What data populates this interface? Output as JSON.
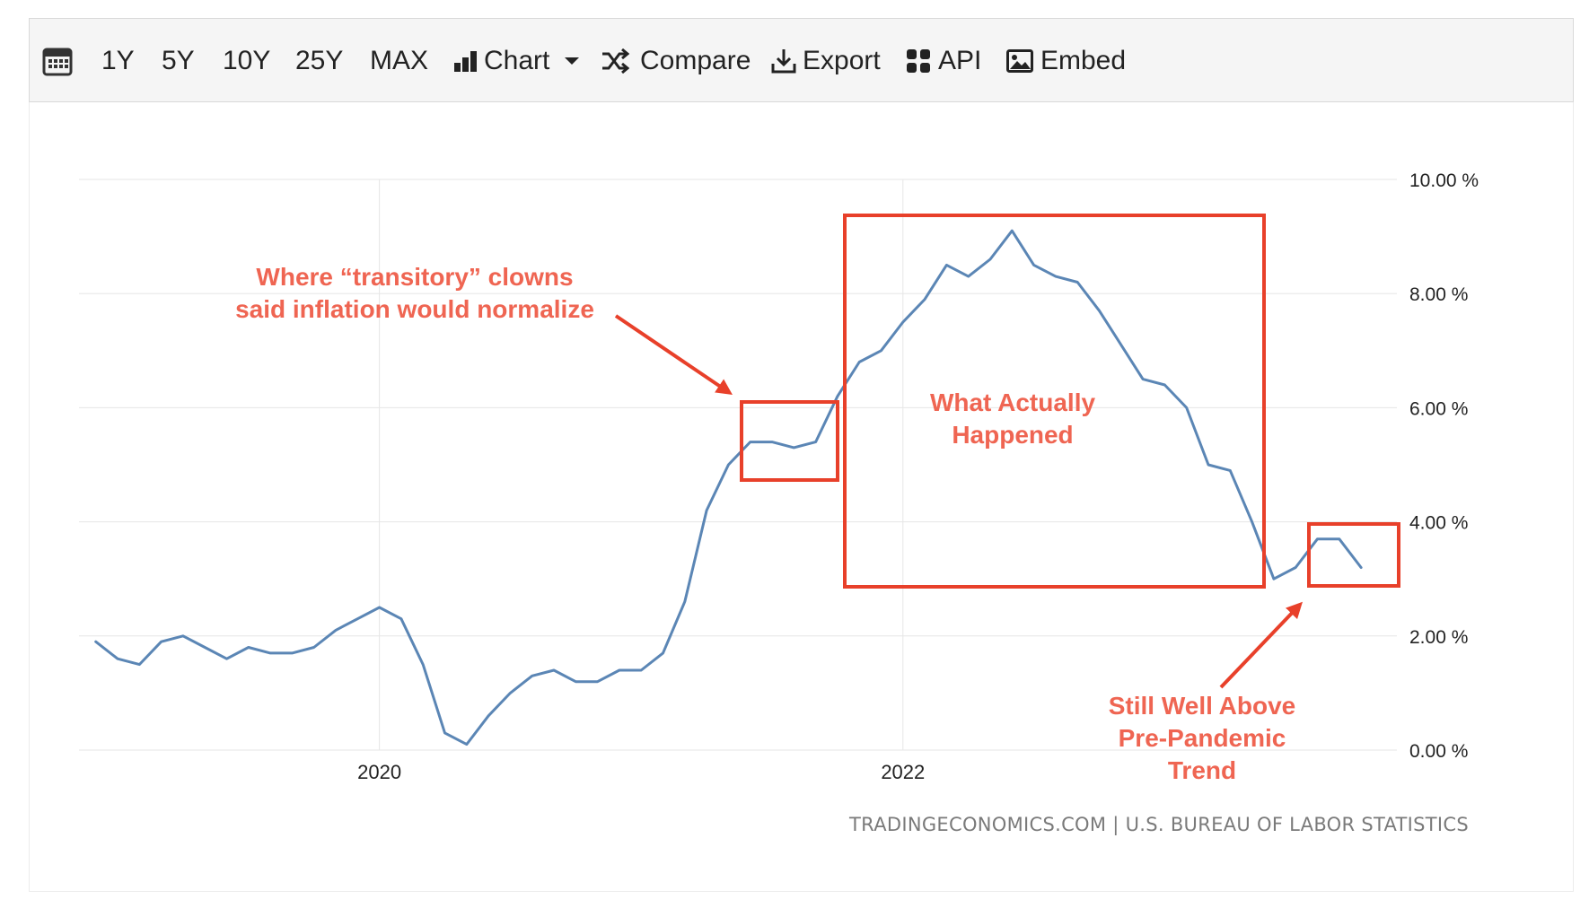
{
  "toolbar": {
    "items": [
      {
        "label": "",
        "icon": "calendar-icon"
      },
      {
        "label": "1Y"
      },
      {
        "label": "5Y"
      },
      {
        "label": "10Y"
      },
      {
        "label": "25Y"
      },
      {
        "label": "MAX"
      },
      {
        "label": "Chart",
        "icon": "bar-chart-icon"
      },
      {
        "label": "Compare",
        "icon": "shuffle-icon"
      },
      {
        "label": "Export",
        "icon": "download-icon"
      },
      {
        "label": "API",
        "icon": "grid-icon"
      },
      {
        "label": "Embed",
        "icon": "image-icon"
      }
    ]
  },
  "colors": {
    "line": "#5b86b5",
    "annotation": "#e8402a",
    "annotation_text": "#ef6552",
    "grid": "#e6e6e6"
  },
  "chart_data": {
    "type": "line",
    "title": "",
    "xlabel": "",
    "ylabel": "",
    "x_ticks": [
      "2020",
      "2022"
    ],
    "y_ticks": [
      "0.00 %",
      "2.00 %",
      "4.00 %",
      "6.00 %",
      "8.00 %",
      "10.00 %"
    ],
    "ylim": [
      0,
      10
    ],
    "grid": true,
    "series": [
      {
        "x": [
          "2018-12",
          "2019-01",
          "2019-02",
          "2019-03",
          "2019-04",
          "2019-05",
          "2019-06",
          "2019-07",
          "2019-08",
          "2019-09",
          "2019-10",
          "2019-11",
          "2019-12",
          "2020-01",
          "2020-02",
          "2020-03",
          "2020-04",
          "2020-05",
          "2020-06",
          "2020-07",
          "2020-08",
          "2020-09",
          "2020-10",
          "2020-11",
          "2020-12",
          "2021-01",
          "2021-02",
          "2021-03",
          "2021-04",
          "2021-05",
          "2021-06",
          "2021-07",
          "2021-08",
          "2021-09",
          "2021-10",
          "2021-11",
          "2021-12",
          "2022-01",
          "2022-02",
          "2022-03",
          "2022-04",
          "2022-05",
          "2022-06",
          "2022-07",
          "2022-08",
          "2022-09",
          "2022-10",
          "2022-11",
          "2022-12",
          "2023-01",
          "2023-02",
          "2023-03",
          "2023-04",
          "2023-05",
          "2023-06",
          "2023-07",
          "2023-08",
          "2023-09",
          "2023-10"
        ],
        "values": [
          1.9,
          1.6,
          1.5,
          1.9,
          2.0,
          1.8,
          1.6,
          1.8,
          1.7,
          1.7,
          1.8,
          2.1,
          2.3,
          2.5,
          2.3,
          1.5,
          0.3,
          0.1,
          0.6,
          1.0,
          1.3,
          1.4,
          1.2,
          1.2,
          1.4,
          1.4,
          1.7,
          2.6,
          4.2,
          5.0,
          5.4,
          5.4,
          5.3,
          5.4,
          6.2,
          6.8,
          7.0,
          7.5,
          7.9,
          8.5,
          8.3,
          8.6,
          9.1,
          8.5,
          8.3,
          8.2,
          7.7,
          7.1,
          6.5,
          6.4,
          6.0,
          5.0,
          4.9,
          4.0,
          3.0,
          3.2,
          3.7,
          3.7,
          3.2
        ]
      }
    ],
    "annotations": [
      {
        "text": [
          "Where “transitory” clowns",
          "said inflation would normalize"
        ]
      },
      {
        "text": [
          "What Actually",
          "Happened"
        ]
      },
      {
        "text": [
          "Still Well Above",
          "Pre-Pandemic",
          "Trend"
        ]
      }
    ],
    "source": "TRADINGECONOMICS.COM | U.S. BUREAU OF LABOR STATISTICS"
  }
}
